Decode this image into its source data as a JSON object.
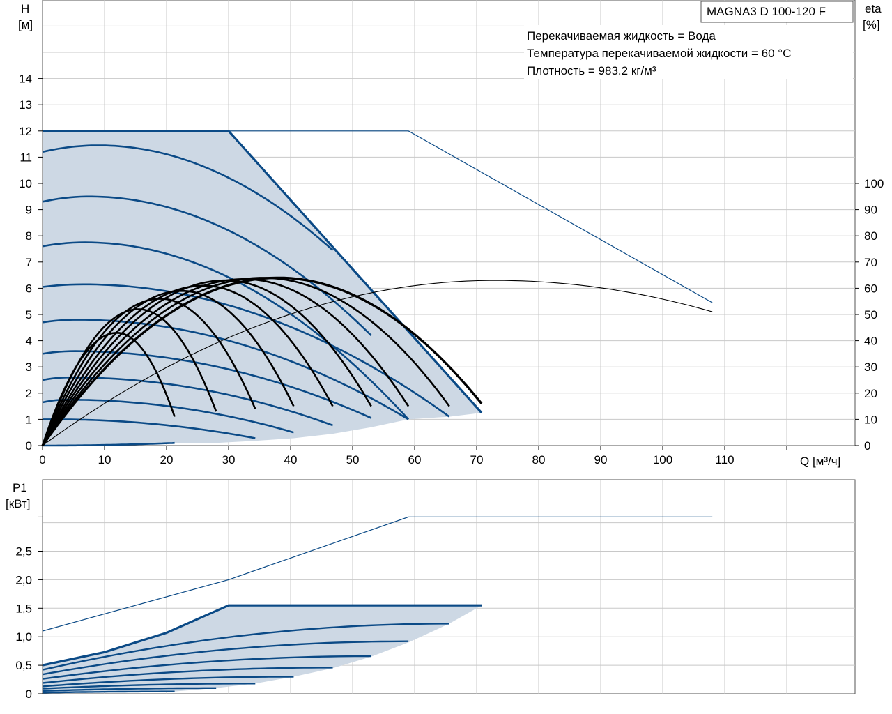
{
  "title": "MAGNA3 D 100-120 F",
  "info_lines": [
    "Перекачиваемая жидкость = Вода",
    "Температура перекачиваемой жидкости = 60 °C",
    "Плотность = 983.2 кг/м³"
  ],
  "colors": {
    "curve": "#0b4a86",
    "area": "#cdd8e4",
    "grid": "#c8c8c8",
    "eff": "#000000"
  },
  "chart_data": [
    {
      "id": "head",
      "type": "line",
      "xlabel": "Q [м³/ч]",
      "ylabel_line1": "H",
      "ylabel_line2": "[м]",
      "y2label_line1": "eta",
      "y2label_line2": "[%]",
      "xlim": [
        0,
        130
      ],
      "ylim": [
        0,
        17
      ],
      "y2lim": [
        0,
        100
      ],
      "x_ticks": [
        "0",
        "10",
        "20",
        "30",
        "40",
        "50",
        "60",
        "70",
        "80",
        "90",
        "100",
        "110"
      ],
      "y_ticks": [
        "0",
        "1",
        "2",
        "3",
        "4",
        "5",
        "6",
        "7",
        "8",
        "9",
        "10",
        "11",
        "12",
        "13",
        "14"
      ],
      "y2_ticks": [
        "0",
        "10",
        "20",
        "30",
        "40",
        "50",
        "60",
        "70",
        "80",
        "90",
        "100"
      ],
      "grid": true,
      "shaded_range_single_pump": {
        "top": [
          [
            0,
            12
          ],
          [
            30,
            12
          ],
          [
            70.8,
            1.25
          ]
        ],
        "bottom": [
          [
            21.3,
            0.1
          ],
          [
            28,
            0.1
          ],
          [
            34.3,
            0.28
          ],
          [
            40.5,
            0.5
          ],
          [
            46.8,
            0.77
          ],
          [
            53,
            1.05
          ],
          [
            59,
            1.25
          ],
          [
            65.6,
            1.1
          ],
          [
            70.8,
            1.25
          ]
        ]
      },
      "twin_max_curve": [
        [
          0,
          12
        ],
        [
          59,
          12
        ],
        [
          108,
          5.45
        ]
      ],
      "speed_curves_H": [
        {
          "h0": 11.2,
          "qpeak": 9,
          "hpeak": 11.45,
          "qend": 46.8,
          "hend": 7.45
        },
        {
          "h0": 9.3,
          "qpeak": 7.5,
          "hpeak": 9.5,
          "qend": 53,
          "hend": 4.2
        },
        {
          "h0": 7.6,
          "qpeak": 6.8,
          "hpeak": 7.75,
          "qend": 59,
          "hend": 1.0
        },
        {
          "h0": 6.05,
          "qpeak": 6.5,
          "hpeak": 6.15,
          "qend": 65.6,
          "hend": 1.1
        },
        {
          "h0": 4.7,
          "qpeak": 5.5,
          "hpeak": 4.8,
          "qend": 59,
          "hend": 1.0
        },
        {
          "h0": 3.5,
          "qpeak": 5,
          "hpeak": 3.6,
          "qend": 53,
          "hend": 1.05
        },
        {
          "h0": 2.5,
          "qpeak": 4.5,
          "hpeak": 2.6,
          "qend": 46.8,
          "hend": 0.77
        },
        {
          "h0": 1.65,
          "qpeak": 4,
          "hpeak": 1.75,
          "qend": 40.5,
          "hend": 0.5
        },
        {
          "h0": 1.0,
          "qpeak": 2,
          "hpeak": 1.0,
          "qend": 34.3,
          "hend": 0.28
        },
        {
          "h0": 0.0,
          "qpeak": 0,
          "hpeak": 0.0,
          "qend": 21.3,
          "hend": 0.1
        }
      ],
      "efficiency_curves_pct": [
        {
          "qpeak": 12,
          "etapeak": 43,
          "qend": 21.3,
          "etaend": 11
        },
        {
          "qpeak": 15.5,
          "etapeak": 52,
          "qend": 28,
          "etaend": 13
        },
        {
          "qpeak": 19,
          "etapeak": 56,
          "qend": 34.3,
          "etaend": 14
        },
        {
          "qpeak": 22.5,
          "etapeak": 59,
          "qend": 40.5,
          "etaend": 15
        },
        {
          "qpeak": 26,
          "etapeak": 61,
          "qend": 46.8,
          "etaend": 15
        },
        {
          "qpeak": 29.5,
          "etapeak": 63,
          "qend": 53,
          "etaend": 15
        },
        {
          "qpeak": 32.5,
          "etapeak": 63.5,
          "qend": 59,
          "etaend": 15
        },
        {
          "qpeak": 35.5,
          "etapeak": 64,
          "qend": 65.6,
          "etaend": 15
        },
        {
          "qpeak": 38,
          "etapeak": 64,
          "qend": 70.8,
          "etaend": 16
        }
      ],
      "efficiency_twin_pct": {
        "qpeak": 73,
        "etapeak": 63,
        "qend": 108,
        "etaend": 51
      }
    },
    {
      "id": "power",
      "type": "line",
      "xlabel": "",
      "ylabel_line1": "P1",
      "ylabel_line2": "[кВт]",
      "xlim": [
        0,
        130
      ],
      "ylim": [
        0,
        3.1
      ],
      "y_ticks": [
        "0",
        "0,5",
        "1,0",
        "1,5",
        "2,0",
        "2,5"
      ],
      "grid": true,
      "twin_max_curve": [
        [
          0,
          1.1
        ],
        [
          30,
          2.0
        ],
        [
          59,
          3.1
        ],
        [
          108,
          3.1
        ]
      ],
      "power_envelope": [
        [
          0,
          0.5
        ],
        [
          10,
          0.73
        ],
        [
          20,
          1.07
        ],
        [
          30,
          1.55
        ],
        [
          70.8,
          1.55
        ]
      ],
      "power_bottom": [
        [
          21.3,
          0.04
        ],
        [
          28,
          0.1
        ],
        [
          34.3,
          0.18
        ],
        [
          40.5,
          0.3
        ],
        [
          46.8,
          0.45
        ],
        [
          53,
          0.65
        ],
        [
          59,
          0.9
        ],
        [
          65.6,
          1.23
        ],
        [
          70.8,
          1.55
        ]
      ],
      "speed_curves_P": [
        {
          "p0": 0.42,
          "qend": 65.6,
          "pend": 1.23
        },
        {
          "p0": 0.34,
          "qend": 59,
          "pend": 0.92
        },
        {
          "p0": 0.26,
          "qend": 53,
          "pend": 0.66
        },
        {
          "p0": 0.19,
          "qend": 46.8,
          "pend": 0.46
        },
        {
          "p0": 0.13,
          "qend": 40.5,
          "pend": 0.3
        },
        {
          "p0": 0.09,
          "qend": 34.3,
          "pend": 0.18
        },
        {
          "p0": 0.05,
          "qend": 28,
          "pend": 0.1
        },
        {
          "p0": 0.02,
          "qend": 21.3,
          "pend": 0.04
        }
      ]
    }
  ]
}
